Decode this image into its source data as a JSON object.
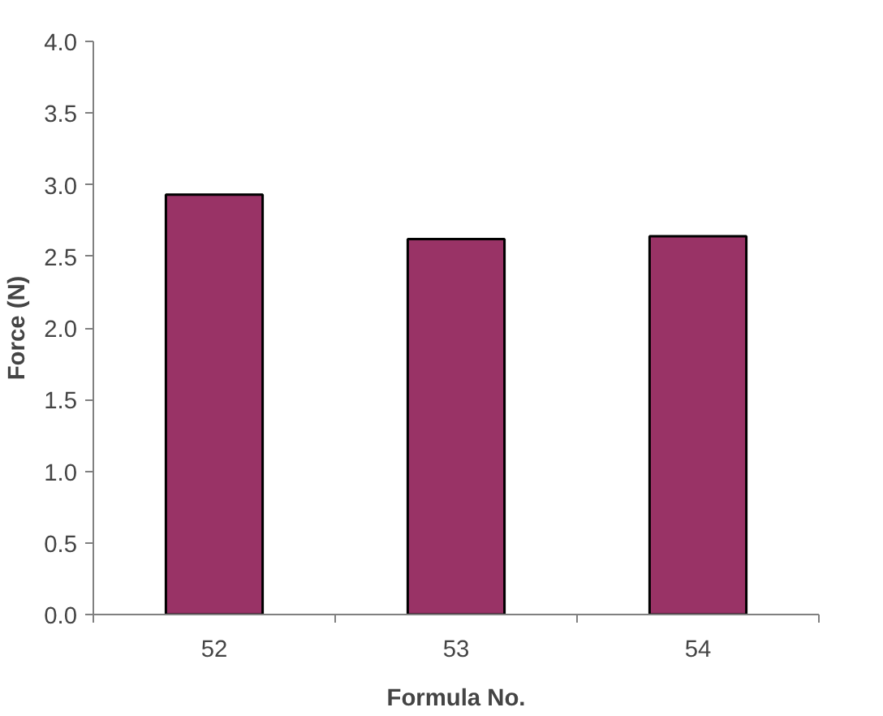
{
  "chart_data": {
    "type": "bar",
    "xlabel": "Formula No.",
    "ylabel": "Force (N)",
    "categories": [
      "52",
      "53",
      "54"
    ],
    "values": [
      2.93,
      2.62,
      2.64
    ],
    "color": "#993366",
    "ylim": [
      0,
      4
    ],
    "yticks": [
      {
        "value": 0,
        "label": "0.0"
      },
      {
        "value": 0.5,
        "label": "0.5"
      },
      {
        "value": 1,
        "label": "1.0"
      },
      {
        "value": 1.5,
        "label": "1.5"
      },
      {
        "value": 2,
        "label": "2.0"
      },
      {
        "value": 2.5,
        "label": "2.5"
      },
      {
        "value": 3,
        "label": "3.0"
      },
      {
        "value": 3.5,
        "label": "3.5"
      },
      {
        "value": 4,
        "label": "4.0"
      }
    ],
    "grid": false
  }
}
